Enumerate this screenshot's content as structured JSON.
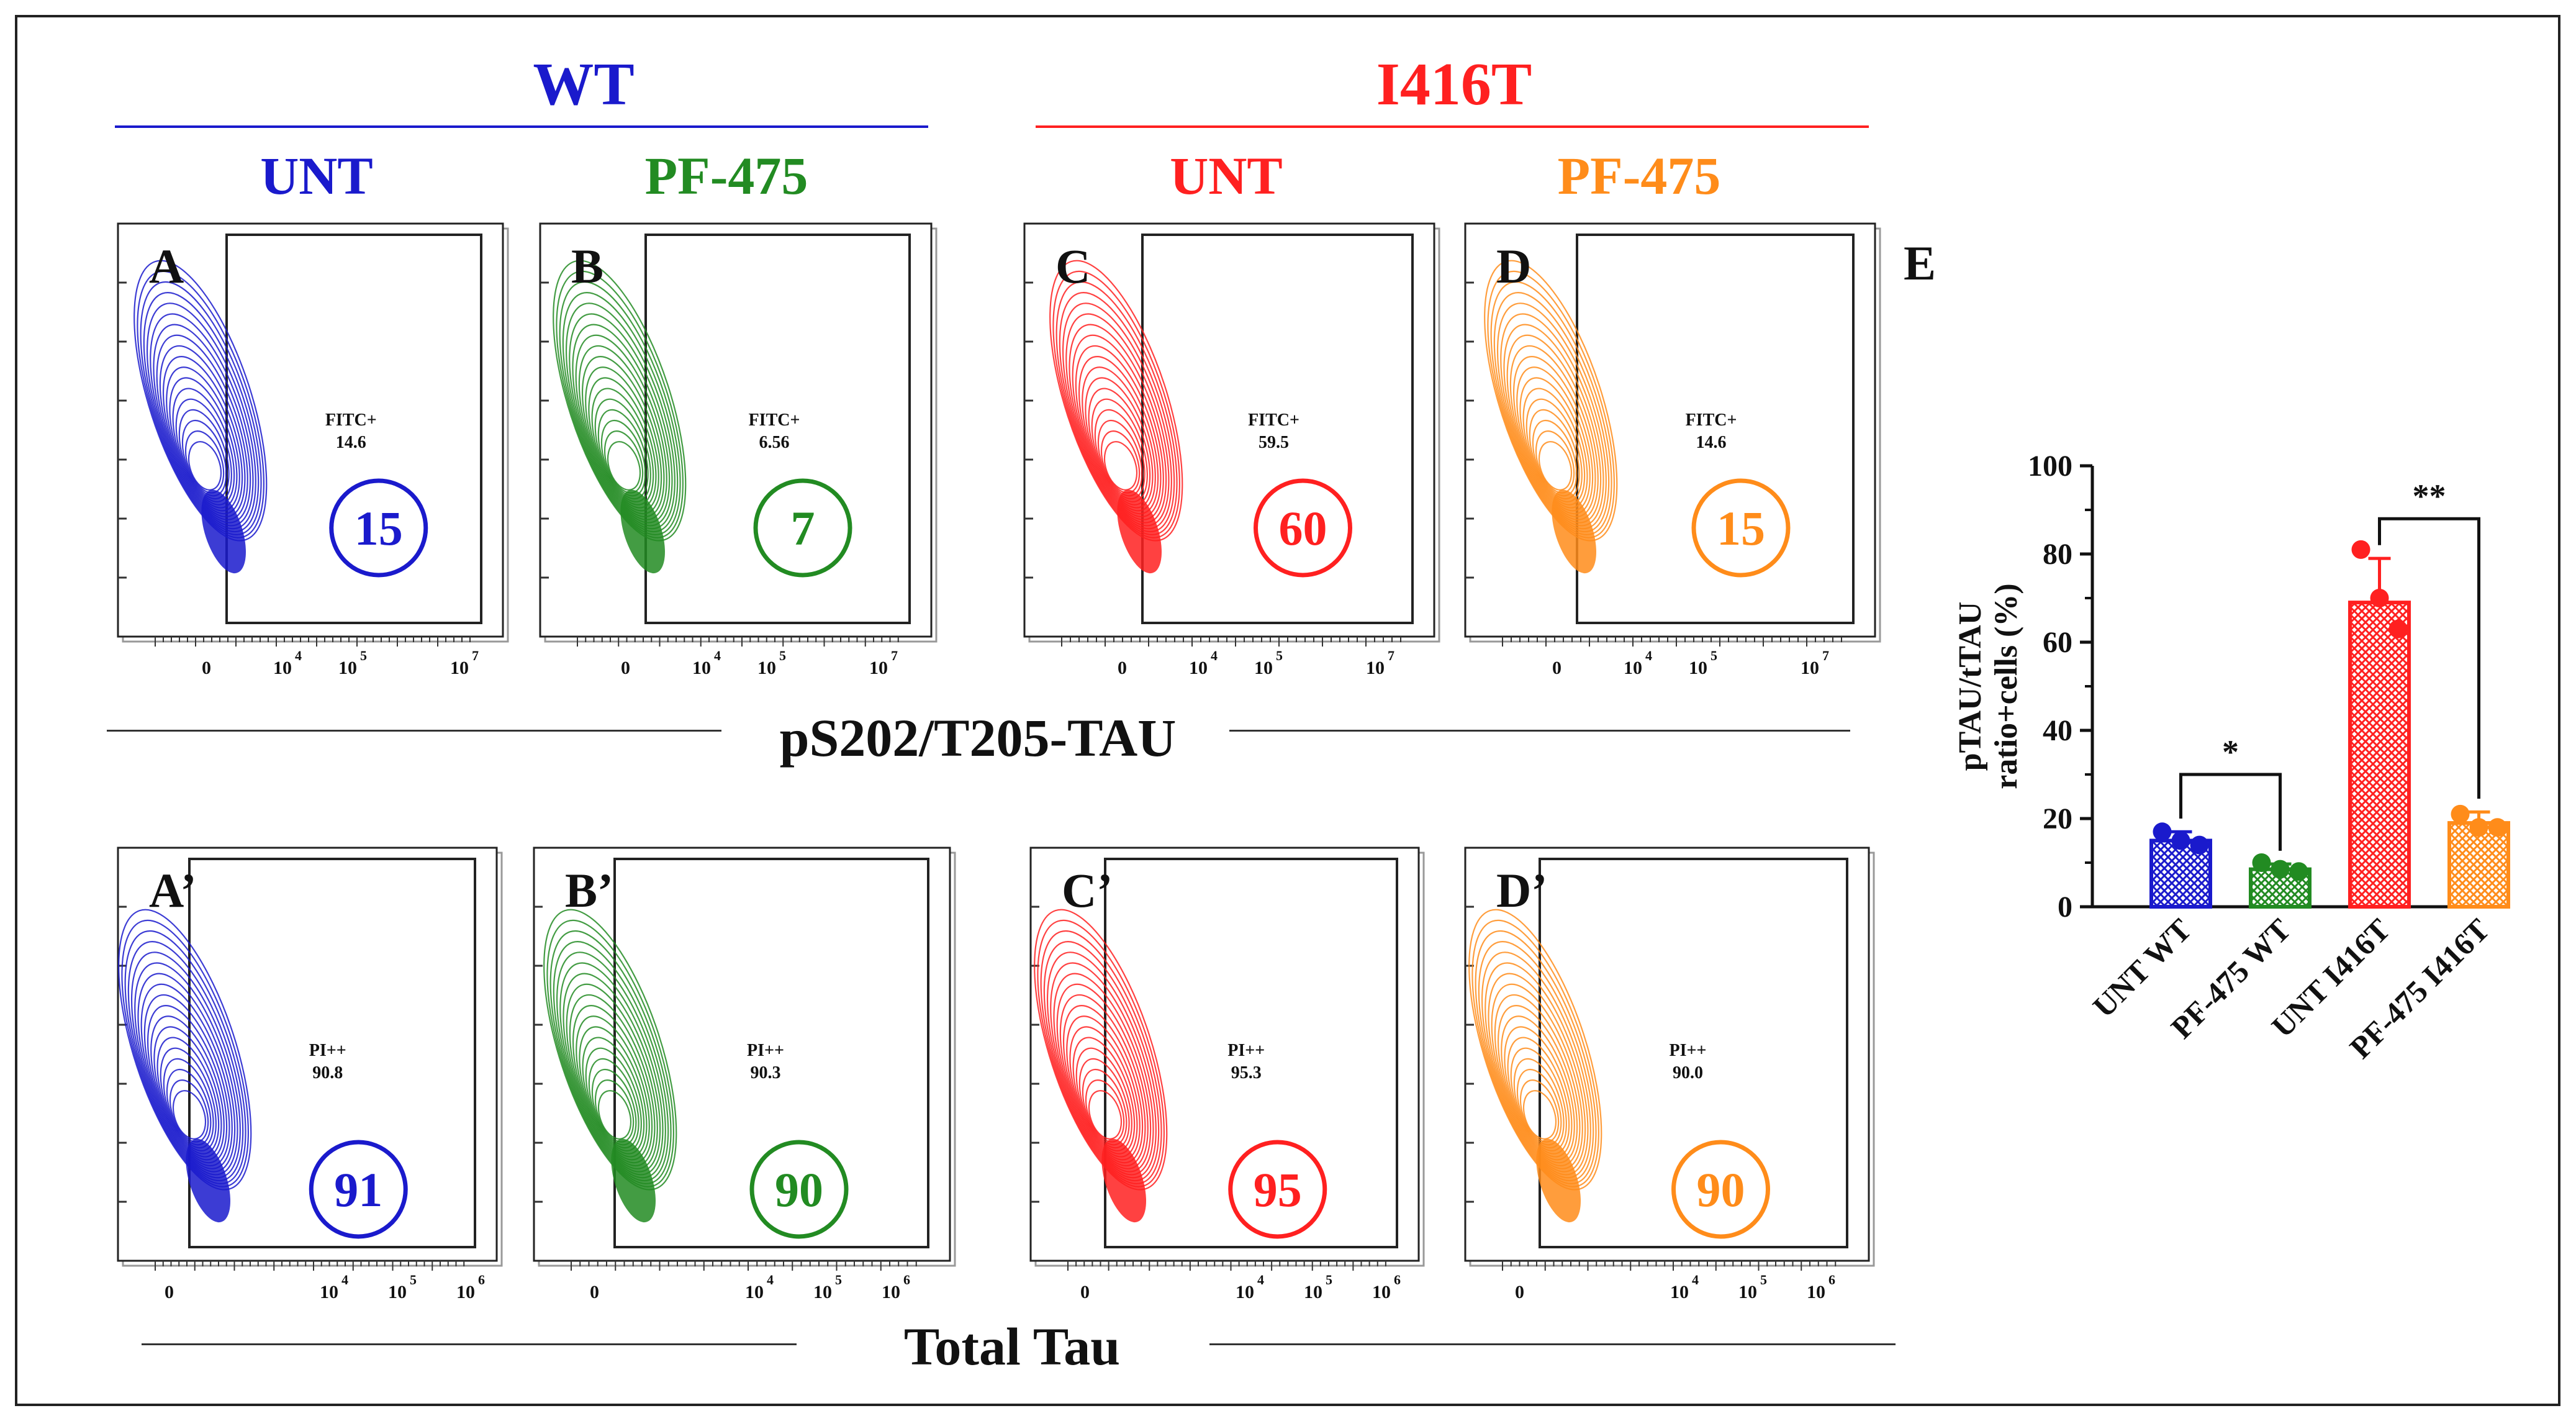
{
  "colors": {
    "wt_untreated": "#1a1acc",
    "wt_pf475": "#228b22",
    "i416t_untreated": "#ff2020",
    "i416t_pf475": "#ff8c1a",
    "frame": "#222222"
  },
  "groups": [
    {
      "title": "WT",
      "color": "#1a1acc"
    },
    {
      "title": "I416T",
      "color": "#ff2020"
    }
  ],
  "conditions": [
    {
      "label": "UNT",
      "color": "#1a1acc"
    },
    {
      "label": "PF-475",
      "color": "#228b22"
    },
    {
      "label": "UNT",
      "color": "#ff2020"
    },
    {
      "label": "PF-475",
      "color": "#ff8c1a"
    }
  ],
  "axis_titles": {
    "top_row": "pS202/T205-TAU",
    "bottom_row": "Total Tau"
  },
  "top_panels": [
    {
      "letter": "A",
      "gate_label": "FITC+",
      "gate_value": "14.6",
      "circle_value": "15",
      "color": "#1a1acc",
      "ticks": [
        "0",
        "10",
        "4",
        "10",
        "5",
        "10",
        "7"
      ]
    },
    {
      "letter": "B",
      "gate_label": "FITC+",
      "gate_value": "6.56",
      "circle_value": "7",
      "color": "#228b22",
      "ticks": [
        "0",
        "10",
        "4",
        "10",
        "5",
        "10",
        "7"
      ]
    },
    {
      "letter": "C",
      "gate_label": "FITC+",
      "gate_value": "59.5",
      "circle_value": "60",
      "color": "#ff2020",
      "ticks": [
        "0",
        "10",
        "4",
        "10",
        "5",
        "10",
        "7"
      ]
    },
    {
      "letter": "D",
      "gate_label": "FITC+",
      "gate_value": "14.6",
      "circle_value": "15",
      "color": "#ff8c1a",
      "ticks": [
        "0",
        "10",
        "4",
        "10",
        "5",
        "10",
        "7"
      ]
    }
  ],
  "bottom_panels": [
    {
      "letter": "A’",
      "gate_label": "PI++",
      "gate_value": "90.8",
      "circle_value": "91",
      "color": "#1a1acc",
      "ticks": [
        "0",
        "10",
        "4",
        "10",
        "5",
        "10",
        "6"
      ]
    },
    {
      "letter": "B’",
      "gate_label": "PI++",
      "gate_value": "90.3",
      "circle_value": "90",
      "color": "#228b22",
      "ticks": [
        "0",
        "10",
        "4",
        "10",
        "5",
        "10",
        "6"
      ]
    },
    {
      "letter": "C’",
      "gate_label": "PI++",
      "gate_value": "95.3",
      "circle_value": "95",
      "color": "#ff2020",
      "ticks": [
        "0",
        "10",
        "4",
        "10",
        "5",
        "10",
        "6"
      ]
    },
    {
      "letter": "D’",
      "gate_label": "PI++",
      "gate_value": "90.0",
      "circle_value": "90",
      "color": "#ff8c1a",
      "ticks": [
        "0",
        "10",
        "4",
        "10",
        "5",
        "10",
        "6"
      ]
    }
  ],
  "chart_data": {
    "panel_letter": "E",
    "type": "bar",
    "ylabel_line1": "pTAU/tTAU",
    "ylabel_line2": "ratio+cells  (%)",
    "ylim": [
      0,
      100
    ],
    "yticks": [
      "0",
      "20",
      "40",
      "60",
      "80",
      "100"
    ],
    "categories": [
      "UNT WT",
      "PF-475 WT",
      "UNT I416T",
      "PF-475 I416T"
    ],
    "values": [
      15,
      8.5,
      69,
      19
    ],
    "errors": [
      2,
      1.2,
      10,
      2.5
    ],
    "points": [
      [
        17,
        15,
        14
      ],
      [
        10,
        8.5,
        8
      ],
      [
        81,
        70,
        63
      ],
      [
        21,
        18,
        18
      ]
    ],
    "colors": [
      "#1a1acc",
      "#228b22",
      "#ff2020",
      "#ff8c1a"
    ],
    "significance": [
      {
        "from": 0,
        "to": 1,
        "label": "*"
      },
      {
        "from": 2,
        "to": 3,
        "label": "**"
      }
    ]
  }
}
